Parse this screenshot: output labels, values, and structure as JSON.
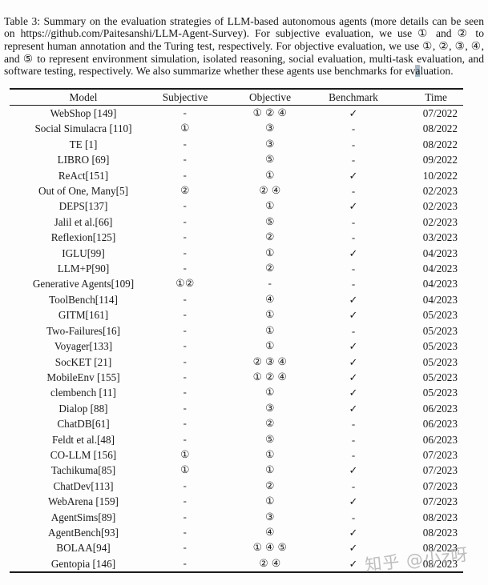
{
  "caption": {
    "before_highlight": "Table 3:  Summary on the evaluation strategies of LLM-based autonomous agents (more details can be seen on https://github.com/Paitesanshi/LLM-Agent-Survey). For subjective evaluation, we use ① and ② to represent human annotation and the Turing test, respectively. For objective evaluation, we use ①, ②, ③, ④, and ⑤ to represent environment simulation, isolated reasoning, social evaluation, multi-task evaluation, and software testing, respectively. We also summarize whether these agents use benchmarks for ev",
    "highlight": "a",
    "after_highlight": "luation."
  },
  "table": {
    "columns": [
      "Model",
      "Subjective",
      "Objective",
      "Benchmark",
      "Time"
    ],
    "rows": [
      {
        "model": "WebShop [149]",
        "subjective": "-",
        "objective": "① ② ④",
        "benchmark": "✓",
        "time": "07/2022"
      },
      {
        "model": "Social Simulacra [110]",
        "subjective": "①",
        "objective": "③",
        "benchmark": "-",
        "time": "08/2022"
      },
      {
        "model": "TE [1]",
        "subjective": "-",
        "objective": "③",
        "benchmark": "-",
        "time": "08/2022"
      },
      {
        "model": "LIBRO [69]",
        "subjective": "-",
        "objective": "⑤",
        "benchmark": "-",
        "time": "09/2022"
      },
      {
        "model": "ReAct[151]",
        "subjective": "-",
        "objective": "①",
        "benchmark": "✓",
        "time": "10/2022"
      },
      {
        "model": "Out of One, Many[5]",
        "subjective": "②",
        "objective": "② ④",
        "benchmark": "-",
        "time": "02/2023"
      },
      {
        "model": "DEPS[137]",
        "subjective": "-",
        "objective": "①",
        "benchmark": "✓",
        "time": "02/2023"
      },
      {
        "model": "Jalil et al.[66]",
        "subjective": "-",
        "objective": "⑤",
        "benchmark": "-",
        "time": "02/2023"
      },
      {
        "model": "Reflexion[125]",
        "subjective": "-",
        "objective": "②",
        "benchmark": "-",
        "time": "03/2023"
      },
      {
        "model": "IGLU[99]",
        "subjective": "-",
        "objective": "①",
        "benchmark": "✓",
        "time": "04/2023"
      },
      {
        "model": "LLM+P[90]",
        "subjective": "-",
        "objective": "②",
        "benchmark": "-",
        "time": "04/2023"
      },
      {
        "model": "Generative Agents[109]",
        "subjective": "①②",
        "objective": "-",
        "benchmark": "-",
        "time": "04/2023"
      },
      {
        "model": "ToolBench[114]",
        "subjective": "-",
        "objective": "④",
        "benchmark": "✓",
        "time": "04/2023"
      },
      {
        "model": "GITM[161]",
        "subjective": "-",
        "objective": "①",
        "benchmark": "✓",
        "time": "05/2023"
      },
      {
        "model": "Two-Failures[16]",
        "subjective": "-",
        "objective": "①",
        "benchmark": "-",
        "time": "05/2023"
      },
      {
        "model": "Voyager[133]",
        "subjective": "-",
        "objective": "①",
        "benchmark": "✓",
        "time": "05/2023"
      },
      {
        "model": "SocKET [21]",
        "subjective": "-",
        "objective": "② ③ ④",
        "benchmark": "✓",
        "time": "05/2023"
      },
      {
        "model": "MobileEnv [155]",
        "subjective": "-",
        "objective": "① ② ④",
        "benchmark": "✓",
        "time": "05/2023"
      },
      {
        "model": "clembench [11]",
        "subjective": "-",
        "objective": "①",
        "benchmark": "✓",
        "time": "05/2023"
      },
      {
        "model": "Dialop [88]",
        "subjective": "-",
        "objective": "③",
        "benchmark": "✓",
        "time": "06/2023"
      },
      {
        "model": "ChatDB[61]",
        "subjective": "-",
        "objective": "②",
        "benchmark": "-",
        "time": "06/2023"
      },
      {
        "model": "Feldt et al.[48]",
        "subjective": "-",
        "objective": "⑤",
        "benchmark": "-",
        "time": "06/2023"
      },
      {
        "model": "CO-LLM [156]",
        "subjective": "①",
        "objective": "①",
        "benchmark": "-",
        "time": "07/2023"
      },
      {
        "model": "Tachikuma[85]",
        "subjective": "①",
        "objective": "①",
        "benchmark": "✓",
        "time": "07/2023"
      },
      {
        "model": "ChatDev[113]",
        "subjective": "-",
        "objective": "②",
        "benchmark": "-",
        "time": "07/2023"
      },
      {
        "model": "WebArena [159]",
        "subjective": "-",
        "objective": "①",
        "benchmark": "✓",
        "time": "07/2023"
      },
      {
        "model": "AgentSims[89]",
        "subjective": "-",
        "objective": "③",
        "benchmark": "-",
        "time": "08/2023"
      },
      {
        "model": "AgentBench[93]",
        "subjective": "-",
        "objective": "④",
        "benchmark": "✓",
        "time": "08/2023"
      },
      {
        "model": "BOLAA[94]",
        "subjective": "-",
        "objective": "① ④ ⑤",
        "benchmark": "✓",
        "time": "08/2023"
      },
      {
        "model": "Gentopia [146]",
        "subjective": "-",
        "objective": "② ④",
        "benchmark": "✓",
        "time": "08/2023"
      }
    ]
  },
  "watermark": "知乎 @小z呀"
}
